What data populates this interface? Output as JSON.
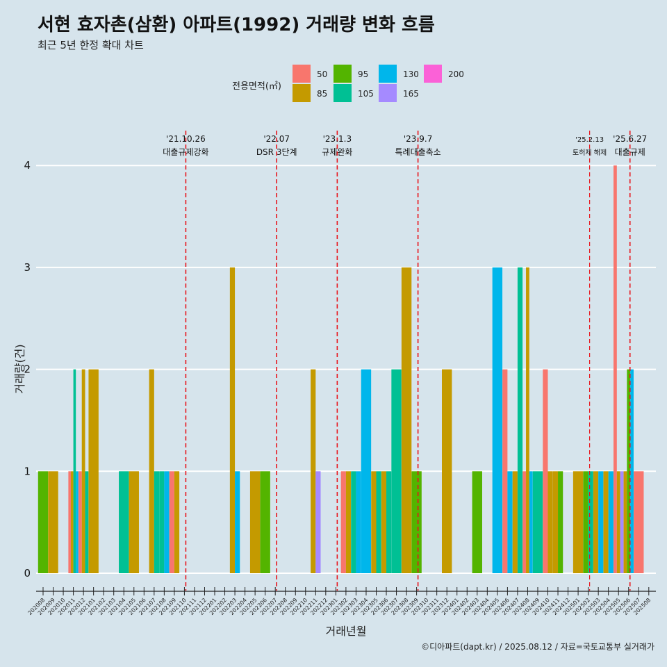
{
  "chart_data": {
    "type": "bar",
    "title": "서현 효자촌(삼환) 아파트(1992) 거래량 변화 흐름",
    "subtitle": "최근 5년 한정 확대 차트",
    "xlabel": "거래년월",
    "ylabel": "거래량(건)",
    "caption": "©디아파트(dapt.kr) / 2025.08.12 / 자료=국토교통부 실거래가",
    "ylim": [
      0,
      4
    ],
    "yticks": [
      "0",
      "1",
      "2",
      "3",
      "4"
    ],
    "grid": true,
    "legend_position": "top",
    "legend": {
      "title": "전용면적(㎡)",
      "items": [
        {
          "key": "50",
          "label": "50",
          "color": "#f8766d"
        },
        {
          "key": "85",
          "label": "85",
          "color": "#c49a00"
        },
        {
          "key": "95",
          "label": "95",
          "color": "#53b400"
        },
        {
          "key": "105",
          "label": "105",
          "color": "#00c094"
        },
        {
          "key": "130",
          "label": "130",
          "color": "#00b6eb"
        },
        {
          "key": "165",
          "label": "165",
          "color": "#a58aff"
        },
        {
          "key": "200",
          "label": "200",
          "color": "#fb61d7"
        }
      ]
    },
    "categories": [
      "202008",
      "202009",
      "202010",
      "202011",
      "202012",
      "202101",
      "202102",
      "202103",
      "202104",
      "202105",
      "202106",
      "202107",
      "202108",
      "202109",
      "202110",
      "202111",
      "202112",
      "202201",
      "202202",
      "202203",
      "202204",
      "202205",
      "202206",
      "202207",
      "202208",
      "202209",
      "202210",
      "202211",
      "202212",
      "202301",
      "202302",
      "202303",
      "202304",
      "202305",
      "202306",
      "202307",
      "202308",
      "202309",
      "202310",
      "202311",
      "202312",
      "202401",
      "202402",
      "202403",
      "202404",
      "202405",
      "202406",
      "202407",
      "202408",
      "202409",
      "202410",
      "202411",
      "202412",
      "202501",
      "202502",
      "202503",
      "202504",
      "202505",
      "202506",
      "202507",
      "202508"
    ],
    "bars": [
      {
        "month": "202008",
        "values": {
          "95": 1
        }
      },
      {
        "month": "202009",
        "values": {
          "85": 1
        }
      },
      {
        "month": "202011",
        "values": {
          "50": 1,
          "85": 1,
          "105": 2,
          "130": 1
        }
      },
      {
        "month": "202012",
        "values": {
          "50": 1,
          "85": 2,
          "105": 1
        }
      },
      {
        "month": "202101",
        "values": {
          "85": 2
        }
      },
      {
        "month": "202104",
        "values": {
          "105": 1
        }
      },
      {
        "month": "202105",
        "values": {
          "85": 1
        }
      },
      {
        "month": "202107",
        "values": {
          "85": 2,
          "105": 1
        }
      },
      {
        "month": "202108",
        "values": {
          "105": 1,
          "130": 1
        }
      },
      {
        "month": "202109",
        "values": {
          "50": 1,
          "85": 1
        }
      },
      {
        "month": "202203",
        "values": {
          "85": 3,
          "130": 1
        }
      },
      {
        "month": "202205",
        "values": {
          "85": 1
        }
      },
      {
        "month": "202206",
        "values": {
          "95": 1
        }
      },
      {
        "month": "202211",
        "values": {
          "85": 2,
          "165": 1
        }
      },
      {
        "month": "202302",
        "values": {
          "50": 1,
          "85": 1
        }
      },
      {
        "month": "202303",
        "values": {
          "105": 1,
          "130": 1
        }
      },
      {
        "month": "202304",
        "values": {
          "130": 2
        }
      },
      {
        "month": "202305",
        "values": {
          "85": 1,
          "105": 1
        }
      },
      {
        "month": "202306",
        "values": {
          "85": 1,
          "105": 1
        }
      },
      {
        "month": "202307",
        "values": {
          "105": 2
        }
      },
      {
        "month": "202308",
        "values": {
          "85": 3
        }
      },
      {
        "month": "202309",
        "values": {
          "95": 1
        }
      },
      {
        "month": "202312",
        "values": {
          "85": 2
        }
      },
      {
        "month": "202403",
        "values": {
          "95": 1
        }
      },
      {
        "month": "202405",
        "values": {
          "130": 3
        }
      },
      {
        "month": "202406",
        "values": {
          "50": 2,
          "130": 1
        }
      },
      {
        "month": "202407",
        "values": {
          "85": 1,
          "105": 3
        }
      },
      {
        "month": "202408",
        "values": {
          "50": 1,
          "85": 3,
          "130": 1
        }
      },
      {
        "month": "202409",
        "values": {
          "105": 1
        }
      },
      {
        "month": "202410",
        "values": {
          "50": 2,
          "85": 1
        }
      },
      {
        "month": "202411",
        "values": {
          "85": 1,
          "95": 1
        }
      },
      {
        "month": "202501",
        "values": {
          "85": 1
        }
      },
      {
        "month": "202502",
        "values": {
          "95": 1,
          "105": 1
        }
      },
      {
        "month": "202503",
        "values": {
          "85": 1,
          "130": 1
        }
      },
      {
        "month": "202504",
        "values": {
          "85": 1,
          "130": 1
        }
      },
      {
        "month": "202505",
        "values": {
          "50": 4,
          "85": 1,
          "165": 1
        }
      },
      {
        "month": "202506",
        "values": {
          "85": 1,
          "95": 2,
          "130": 2
        }
      },
      {
        "month": "202507",
        "values": {
          "50": 1
        }
      }
    ],
    "events": [
      {
        "month": "202110",
        "date": "'21.10.26",
        "label": "대출규제강화"
      },
      {
        "month": "202207",
        "date": "'22.07",
        "label": "DSR 3단계"
      },
      {
        "month": "202301",
        "date": "'23.1.3",
        "label": "규제완화"
      },
      {
        "month": "202309",
        "date": "'23.9.7",
        "label": "특례대출축소"
      },
      {
        "month": "202502",
        "date": "'25.2.13",
        "label": "토허제 해제",
        "small": true
      },
      {
        "month": "202506",
        "date": "'25.6.27",
        "label": "대출규제"
      }
    ]
  }
}
